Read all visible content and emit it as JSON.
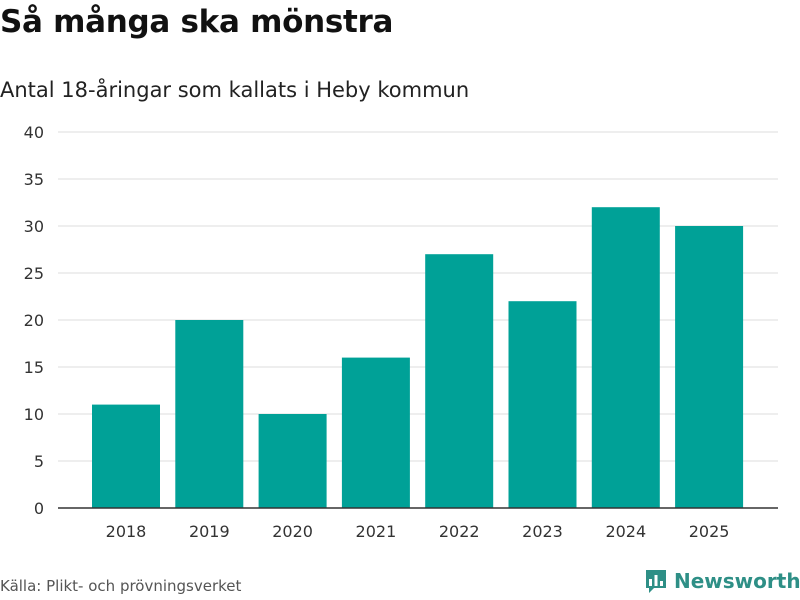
{
  "chart_data": {
    "type": "bar",
    "title": "Så många ska mönstra",
    "subtitle": "Antal 18-åringar som kallats i Heby kommun",
    "categories": [
      "2018",
      "2019",
      "2020",
      "2021",
      "2022",
      "2023",
      "2024",
      "2025"
    ],
    "values": [
      11,
      20,
      10,
      16,
      27,
      22,
      32,
      30
    ],
    "ylim": [
      0,
      40
    ],
    "yticks": [
      "0",
      "5",
      "10",
      "15",
      "20",
      "25",
      "30",
      "35",
      "40"
    ],
    "xlabel": "",
    "ylabel": "",
    "grid": true,
    "bar_color": "#00a197"
  },
  "source": "Källa: Plikt- och prövningsverket",
  "brand": {
    "name": "Newsworthy",
    "color": "#2e8f86",
    "icon": "bar-chart-logo-icon"
  }
}
